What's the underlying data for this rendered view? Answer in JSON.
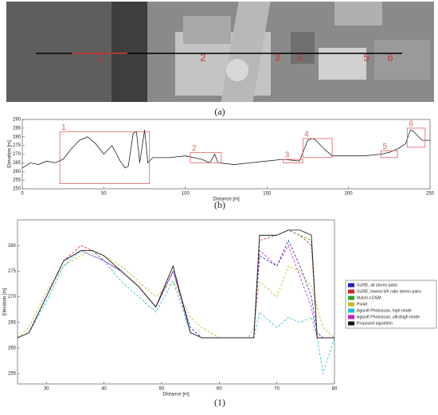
{
  "image_labels": [
    "1",
    "2",
    "3",
    "4",
    "5",
    "6"
  ],
  "captions": [
    "(a)",
    "(b)",
    "(1)"
  ],
  "chart_data": [
    {
      "type": "line",
      "ylabel": "Elevation [m]",
      "xlabel": "Distance [m]",
      "xlim": [
        0,
        250
      ],
      "xticks": [
        0,
        50,
        100,
        150,
        200,
        250
      ],
      "ylim": [
        250,
        290
      ],
      "yticks": [
        250,
        255,
        260,
        265,
        270,
        275,
        280,
        285,
        290
      ],
      "x": [
        0,
        5,
        10,
        15,
        20,
        25,
        30,
        35,
        40,
        45,
        50,
        55,
        60,
        63,
        65,
        68,
        70,
        72,
        75,
        77,
        80,
        90,
        100,
        110,
        115,
        118,
        120,
        130,
        140,
        150,
        160,
        170,
        175,
        178,
        180,
        185,
        190,
        200,
        210,
        220,
        225,
        230,
        235,
        238,
        240,
        245,
        250
      ],
      "series": [
        {
          "color": "#222222",
          "values": [
            262,
            265,
            264,
            266,
            265,
            267,
            273,
            278,
            280,
            276,
            270,
            275,
            266,
            262,
            263,
            282,
            283,
            265,
            284,
            265,
            268,
            268,
            269,
            267,
            265,
            270,
            265,
            264,
            265,
            266,
            267,
            266,
            278,
            279,
            278,
            273,
            269,
            269,
            269,
            270,
            271,
            273,
            276,
            284,
            283,
            278,
            278
          ]
        }
      ],
      "regions": [
        {
          "label": "1",
          "x": [
            23,
            78
          ],
          "y": [
            253,
            283
          ]
        },
        {
          "label": "2",
          "x": [
            103,
            122
          ],
          "y": [
            265,
            271
          ]
        },
        {
          "label": "3",
          "x": [
            160,
            172
          ],
          "y": [
            265,
            267
          ]
        },
        {
          "label": "4",
          "x": [
            172,
            190
          ],
          "y": [
            268,
            279
          ]
        },
        {
          "label": "5",
          "x": [
            220,
            230
          ],
          "y": [
            268,
            272
          ]
        },
        {
          "label": "6",
          "x": [
            236,
            247
          ],
          "y": [
            274,
            285
          ]
        }
      ],
      "region_color": "#e06060"
    },
    {
      "type": "line",
      "ylabel": "Elevation [m]",
      "xlabel": "Distance [m]",
      "xlim": [
        25,
        80
      ],
      "xticks": [
        30,
        40,
        50,
        60,
        70,
        80
      ],
      "ylim": [
        253,
        285
      ],
      "yticks": [
        255,
        260,
        265,
        270,
        275,
        280
      ],
      "x": [
        25,
        27,
        30,
        33,
        36,
        38,
        40,
        43,
        46,
        49,
        52,
        55,
        57,
        60,
        63,
        65,
        66,
        67,
        70,
        72,
        74,
        76,
        77,
        78,
        80
      ],
      "series": [
        {
          "name": "SURE, all stereo pairs",
          "color": "#1f1fbf",
          "dash": true,
          "values": [
            262,
            263,
            270,
            277,
            279,
            279,
            277,
            275,
            272,
            268,
            275,
            264,
            262,
            262,
            262,
            262,
            262,
            278,
            276,
            281,
            276,
            270,
            263,
            262,
            262
          ]
        },
        {
          "name": "SURE, lowest b/h ratio stereo pairs",
          "color": "#d62728",
          "dash": true,
          "values": [
            262,
            263,
            270,
            277,
            280,
            279,
            278,
            275,
            272,
            268,
            276,
            263,
            262,
            262,
            262,
            262,
            262,
            281,
            282,
            283,
            282,
            280,
            262,
            262,
            262
          ]
        },
        {
          "name": "Match-t-DSM",
          "color": "#2ca02c",
          "dash": true,
          "values": [
            262,
            263,
            270,
            277,
            279,
            279,
            278,
            275,
            272,
            268,
            276,
            263,
            262,
            262,
            262,
            262,
            262,
            282,
            282,
            283,
            282,
            281,
            262,
            262,
            262
          ]
        },
        {
          "name": "Pix4d",
          "color": "#bcbd22",
          "dash": true,
          "values": [
            262,
            264,
            271,
            276,
            278,
            279,
            278,
            276,
            273,
            270,
            273,
            266,
            264,
            262,
            262,
            262,
            264,
            273,
            270,
            276,
            275,
            272,
            268,
            264,
            262
          ]
        },
        {
          "name": "Agisoft Photoscan, high mode",
          "color": "#17becf",
          "dash": true,
          "values": [
            262,
            263,
            269,
            276,
            279,
            278,
            277,
            273,
            270,
            267,
            273,
            263,
            262,
            262,
            262,
            262,
            262,
            267,
            264,
            266,
            265,
            266,
            262,
            255,
            262
          ]
        },
        {
          "name": "Agisoft Photoscan, ultrahigh mode",
          "color": "#bf1fbf",
          "dash": true,
          "values": [
            262,
            263,
            270,
            277,
            279,
            278,
            277,
            275,
            272,
            268,
            275,
            263,
            262,
            262,
            262,
            262,
            262,
            279,
            276,
            280,
            274,
            268,
            262,
            262,
            262
          ]
        },
        {
          "name": "Proposed algorithm",
          "color": "#111111",
          "dash": false,
          "values": [
            262,
            263,
            270,
            277,
            279,
            279,
            278,
            275,
            272,
            268,
            276,
            263,
            262,
            262,
            262,
            262,
            262,
            282,
            282,
            283,
            283,
            282,
            262,
            262,
            262
          ]
        }
      ]
    }
  ]
}
